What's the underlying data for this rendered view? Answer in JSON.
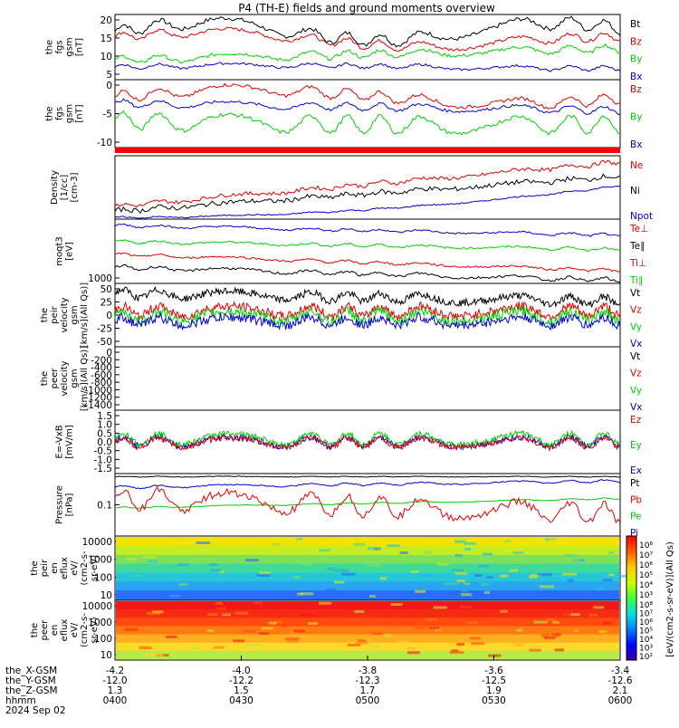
{
  "title": "P4 (TH-E) fields and ground moments overview",
  "colors": {
    "black": "#000000",
    "red": "#e00000",
    "green": "#00d000",
    "blue": "#0000d0"
  },
  "panels": [
    {
      "id": "fgs_btot",
      "ylabel": [
        "the",
        "fgs",
        "gsm",
        "[nT]"
      ],
      "yticks": [
        "20",
        "15",
        "10",
        "5"
      ],
      "legend": [
        {
          "text": "Bt",
          "color": "#000000"
        },
        {
          "text": "Bz",
          "color": "#e00000"
        },
        {
          "text": "By",
          "color": "#00d000"
        },
        {
          "text": "Bx",
          "color": "#0000d0"
        }
      ]
    },
    {
      "id": "fgs_comp",
      "ylabel": [
        "the",
        "fgs",
        "gsm",
        "[nT]"
      ],
      "yticks": [
        "0",
        "-5",
        "-10"
      ],
      "legend": [
        {
          "text": "Bz",
          "color": "#e00000"
        },
        {
          "text": "By",
          "color": "#00d000"
        },
        {
          "text": "Bx",
          "color": "#0000d0"
        }
      ]
    },
    {
      "id": "density",
      "ylabel": [
        "Density",
        "[1/cc]",
        "[cm-3]"
      ],
      "yticks": [],
      "legend": [
        {
          "text": "Ne",
          "color": "#e00000"
        },
        {
          "text": "Ni",
          "color": "#000000"
        },
        {
          "text": "Npot",
          "color": "#0000d0"
        }
      ]
    },
    {
      "id": "temp",
      "ylabel": [
        "moqt3",
        "[eV]"
      ],
      "yticks": [
        "1000"
      ],
      "legend": [
        {
          "text": "Te⊥",
          "color": "#e00000"
        },
        {
          "text": "Te∥",
          "color": "#000000"
        },
        {
          "text": "Ti⊥",
          "color": "#e00000"
        },
        {
          "text": "Ti∥",
          "color": "#00d000"
        }
      ]
    },
    {
      "id": "peir_vel",
      "ylabel": [
        "the",
        "peir",
        "velocity",
        "gsm",
        "[km/s](All Qs)]"
      ],
      "yticks": [
        "50",
        "25",
        "0",
        "-25",
        "-50"
      ],
      "legend": [
        {
          "text": "Vt",
          "color": "#000000"
        },
        {
          "text": "Vz",
          "color": "#e00000"
        },
        {
          "text": "Vy",
          "color": "#00d000"
        },
        {
          "text": "Vx",
          "color": "#0000d0"
        }
      ]
    },
    {
      "id": "peer_vel",
      "ylabel": [
        "the",
        "peer",
        "velocity",
        "gsm",
        "[km/s](All Qs)]"
      ],
      "yticks": [
        "0",
        "-200",
        "-400",
        "-600",
        "-800",
        "-1000",
        "-1200",
        "-1400"
      ],
      "legend": [
        {
          "text": "Vt",
          "color": "#000000"
        },
        {
          "text": "Vz",
          "color": "#e00000"
        },
        {
          "text": "Vy",
          "color": "#00d000"
        },
        {
          "text": "Vx",
          "color": "#0000d0"
        }
      ]
    },
    {
      "id": "efield",
      "ylabel": [
        "E=-VxB",
        "[mV/m]"
      ],
      "yticks": [
        "1.5",
        "1.0",
        "0.5",
        "0.0",
        "-0.5",
        "-1.0",
        "-1.5"
      ],
      "legend": [
        {
          "text": "Ez",
          "color": "#e00000"
        },
        {
          "text": "Ey",
          "color": "#00d000"
        },
        {
          "text": "Ex",
          "color": "#0000d0"
        }
      ]
    },
    {
      "id": "pressure",
      "ylabel": [
        "Pressure",
        "[nPa]"
      ],
      "yticks": [
        "0.1"
      ],
      "legend": [
        {
          "text": "Pt",
          "color": "#000000"
        },
        {
          "text": "Pb",
          "color": "#e00000"
        },
        {
          "text": "Pe",
          "color": "#00d000"
        },
        {
          "text": "Pi",
          "color": "#0000d0"
        }
      ]
    },
    {
      "id": "peir_spec",
      "ylabel": [
        "the",
        "peir",
        "en",
        "eflux",
        "eV/",
        "(cm2-s-",
        "sr-eV)"
      ],
      "yticks": [
        "10000",
        "1000",
        "100",
        "10"
      ],
      "legend": []
    },
    {
      "id": "peer_spec",
      "ylabel": [
        "the",
        "peer",
        "en",
        "eflux",
        "eV/",
        "(cm2-s-",
        "sr-eV)"
      ],
      "yticks": [
        "10000",
        "1000",
        "100",
        "10"
      ],
      "legend": []
    }
  ],
  "colorbar": {
    "label": "[eV/(cm2-s-sr-eV)](All Qs)",
    "ticks_top": [
      "10⁸",
      "10⁷",
      "10⁶",
      "10⁵",
      "10⁴",
      "10³"
    ],
    "ticks_bottom": [
      "10⁸",
      "10⁷",
      "10⁶",
      "10⁵",
      "10⁴",
      "10³",
      "10²"
    ]
  },
  "xaxis": {
    "row_labels": [
      "the_X-GSM",
      "the_Y-GSM",
      "the_Z-GSM",
      "hhmm",
      "2024 Sep 02"
    ],
    "ticks": [
      {
        "x": "-4.2",
        "y": "-12.0",
        "z": "1.3",
        "t": "0400"
      },
      {
        "x": "-4.0",
        "y": "-12.2",
        "z": "1.5",
        "t": "0430"
      },
      {
        "x": "-3.8",
        "y": "-12.3",
        "z": "1.7",
        "t": "0500"
      },
      {
        "x": "-3.6",
        "y": "-12.5",
        "z": "1.9",
        "t": "0530"
      },
      {
        "x": "-3.4",
        "y": "-12.6",
        "z": "2.1",
        "t": "0600"
      }
    ]
  },
  "chart_data": {
    "type": "line",
    "title": "P4 (TH-E) fields and ground moments overview",
    "date": "2024 Sep 02",
    "xlabel": "hhmm",
    "x_range": [
      "0400",
      "0600"
    ],
    "series": [
      {
        "name": "Bt",
        "panel": "fgs_btot",
        "x": [
          "0400",
          "0415",
          "0430",
          "0445",
          "0500",
          "0515",
          "0530",
          "0545",
          "0600"
        ],
        "values": [
          16,
          20,
          18,
          19,
          17,
          19,
          15,
          16,
          21
        ]
      },
      {
        "name": "Bz",
        "panel": "fgs_btot",
        "x": [
          "0400",
          "0415",
          "0430",
          "0445",
          "0500",
          "0515",
          "0530",
          "0545",
          "0600"
        ],
        "values": [
          15,
          17,
          15,
          16,
          14,
          15,
          12,
          13,
          17
        ]
      },
      {
        "name": "By",
        "panel": "fgs_btot",
        "x": [
          "0400",
          "0415",
          "0430",
          "0445",
          "0500",
          "0515",
          "0530",
          "0545",
          "0600"
        ],
        "values": [
          6,
          8,
          9,
          9,
          8,
          9,
          11,
          11,
          11
        ]
      },
      {
        "name": "Bx",
        "panel": "fgs_btot",
        "x": [
          "0400",
          "0415",
          "0430",
          "0445",
          "0500",
          "0515",
          "0530",
          "0545",
          "0600"
        ],
        "values": [
          5,
          5,
          5,
          5,
          4,
          5,
          4,
          5,
          7
        ]
      },
      {
        "name": "Vt",
        "panel": "peir_vel",
        "x": [
          "0400",
          "0430",
          "0500",
          "0530",
          "0600"
        ],
        "values": [
          45,
          40,
          35,
          30,
          20
        ]
      },
      {
        "name": "Ez",
        "panel": "efield",
        "x": [
          "0400",
          "0430",
          "0500",
          "0530",
          "0600"
        ],
        "values": [
          0.0,
          0.1,
          0.0,
          -0.1,
          0.0
        ]
      },
      {
        "name": "Pt",
        "panel": "pressure",
        "x": [
          "0400",
          "0430",
          "0500",
          "0530",
          "0600"
        ],
        "values": [
          0.3,
          0.3,
          0.3,
          0.3,
          0.35
        ]
      }
    ],
    "grid": false,
    "legend": "right"
  }
}
